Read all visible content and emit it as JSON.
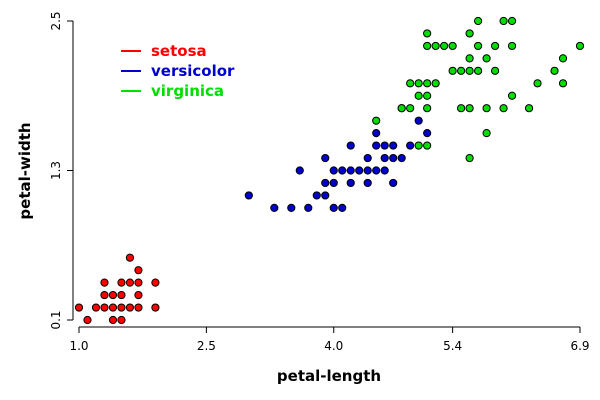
{
  "chart_data": {
    "type": "scatter",
    "title": "",
    "xlabel": "petal-length",
    "ylabel": "petal-width",
    "xlim": [
      1.0,
      6.9
    ],
    "ylim": [
      0.1,
      2.5
    ],
    "xticks": [
      1.0,
      2.5,
      4.0,
      5.4,
      6.9
    ],
    "xtick_labels": [
      "1.0",
      "2.5",
      "4.0",
      "5.4",
      "6.9"
    ],
    "yticks": [
      0.1,
      1.3,
      2.5
    ],
    "ytick_labels": [
      "0.1",
      "1.3",
      "2.5"
    ],
    "grid": false,
    "legend": "top-left",
    "series": [
      {
        "name": "setosa",
        "color": "#ff0000",
        "points": [
          [
            1.0,
            0.2
          ],
          [
            1.1,
            0.1
          ],
          [
            1.2,
            0.2
          ],
          [
            1.3,
            0.2
          ],
          [
            1.3,
            0.3
          ],
          [
            1.3,
            0.4
          ],
          [
            1.4,
            0.1
          ],
          [
            1.4,
            0.2
          ],
          [
            1.4,
            0.3
          ],
          [
            1.5,
            0.1
          ],
          [
            1.5,
            0.2
          ],
          [
            1.5,
            0.3
          ],
          [
            1.5,
            0.4
          ],
          [
            1.6,
            0.2
          ],
          [
            1.6,
            0.4
          ],
          [
            1.6,
            0.6
          ],
          [
            1.7,
            0.2
          ],
          [
            1.7,
            0.3
          ],
          [
            1.7,
            0.4
          ],
          [
            1.7,
            0.5
          ],
          [
            1.9,
            0.2
          ],
          [
            1.9,
            0.4
          ]
        ]
      },
      {
        "name": "versicolor",
        "color": "#0000cc",
        "points": [
          [
            3.0,
            1.1
          ],
          [
            3.3,
            1.0
          ],
          [
            3.5,
            1.0
          ],
          [
            3.6,
            1.3
          ],
          [
            3.7,
            1.0
          ],
          [
            3.8,
            1.1
          ],
          [
            3.9,
            1.1
          ],
          [
            3.9,
            1.2
          ],
          [
            3.9,
            1.4
          ],
          [
            4.0,
            1.0
          ],
          [
            4.0,
            1.2
          ],
          [
            4.0,
            1.3
          ],
          [
            4.1,
            1.0
          ],
          [
            4.1,
            1.3
          ],
          [
            4.2,
            1.2
          ],
          [
            4.2,
            1.3
          ],
          [
            4.2,
            1.5
          ],
          [
            4.3,
            1.3
          ],
          [
            4.4,
            1.2
          ],
          [
            4.4,
            1.3
          ],
          [
            4.4,
            1.4
          ],
          [
            4.5,
            1.3
          ],
          [
            4.5,
            1.5
          ],
          [
            4.5,
            1.6
          ],
          [
            4.6,
            1.3
          ],
          [
            4.6,
            1.4
          ],
          [
            4.6,
            1.5
          ],
          [
            4.7,
            1.2
          ],
          [
            4.7,
            1.4
          ],
          [
            4.7,
            1.5
          ],
          [
            4.8,
            1.4
          ],
          [
            4.8,
            1.8
          ],
          [
            4.9,
            1.5
          ],
          [
            5.0,
            1.7
          ],
          [
            5.1,
            1.6
          ]
        ]
      },
      {
        "name": "virginica",
        "color": "#00dd00",
        "points": [
          [
            4.5,
            1.7
          ],
          [
            4.8,
            1.8
          ],
          [
            4.9,
            1.8
          ],
          [
            4.9,
            2.0
          ],
          [
            5.0,
            1.5
          ],
          [
            5.0,
            1.9
          ],
          [
            5.0,
            2.0
          ],
          [
            5.1,
            1.5
          ],
          [
            5.1,
            1.8
          ],
          [
            5.1,
            1.9
          ],
          [
            5.1,
            2.0
          ],
          [
            5.1,
            2.3
          ],
          [
            5.1,
            2.4
          ],
          [
            5.2,
            2.0
          ],
          [
            5.2,
            2.3
          ],
          [
            5.3,
            2.3
          ],
          [
            5.4,
            2.1
          ],
          [
            5.4,
            2.3
          ],
          [
            5.5,
            1.8
          ],
          [
            5.5,
            2.1
          ],
          [
            5.6,
            1.4
          ],
          [
            5.6,
            1.8
          ],
          [
            5.6,
            2.1
          ],
          [
            5.6,
            2.2
          ],
          [
            5.6,
            2.4
          ],
          [
            5.7,
            2.1
          ],
          [
            5.7,
            2.3
          ],
          [
            5.7,
            2.5
          ],
          [
            5.8,
            1.6
          ],
          [
            5.8,
            1.8
          ],
          [
            5.8,
            2.2
          ],
          [
            5.9,
            2.1
          ],
          [
            5.9,
            2.3
          ],
          [
            6.0,
            1.8
          ],
          [
            6.0,
            2.5
          ],
          [
            6.1,
            1.9
          ],
          [
            6.1,
            2.3
          ],
          [
            6.1,
            2.5
          ],
          [
            6.3,
            1.8
          ],
          [
            6.4,
            2.0
          ],
          [
            6.6,
            2.1
          ],
          [
            6.7,
            2.0
          ],
          [
            6.7,
            2.2
          ],
          [
            6.9,
            2.3
          ]
        ]
      }
    ]
  }
}
